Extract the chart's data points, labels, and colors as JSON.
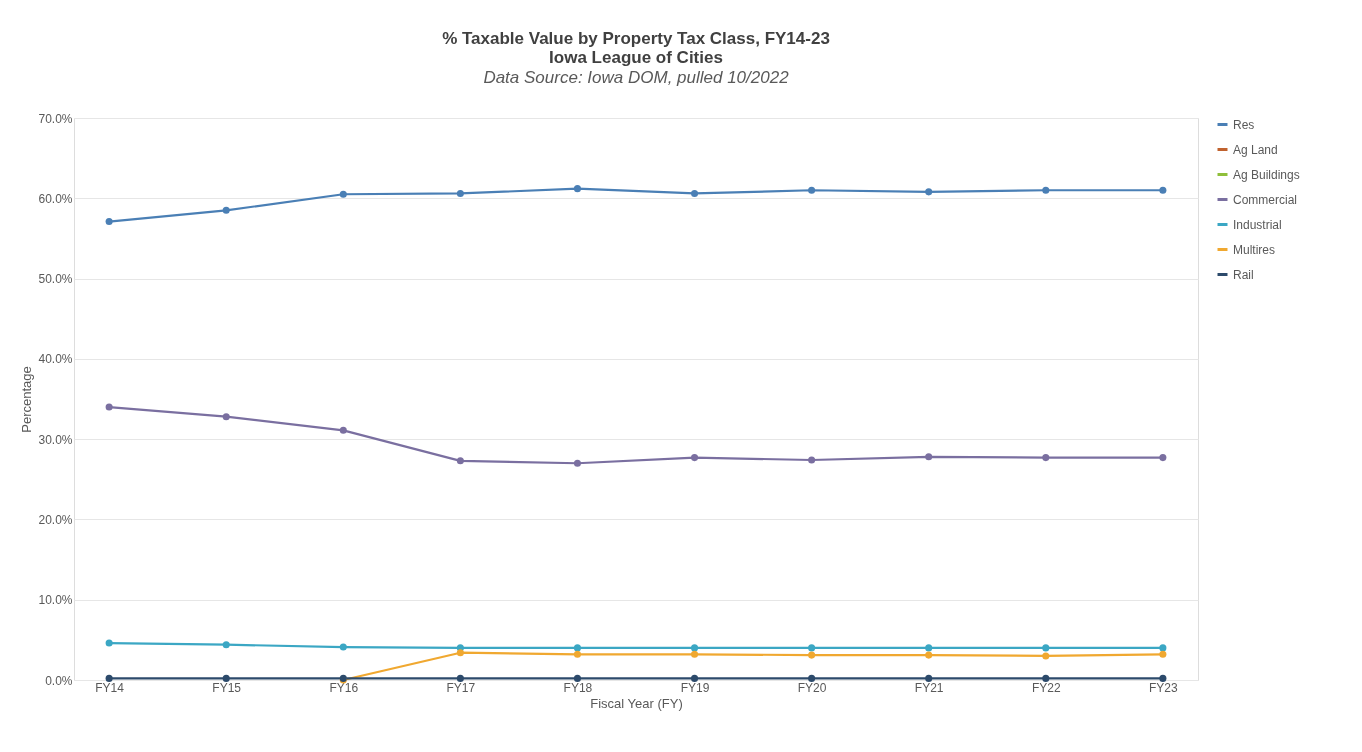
{
  "chart_data": {
    "type": "line",
    "title": "% Taxable Value by Property Tax Class, FY14-23",
    "subtitle": "Iowa League of Cities",
    "annotations": [
      "Data Source: Iowa DOM, pulled 10/2022"
    ],
    "xlabel": "Fiscal Year (FY)",
    "ylabel": "Percentage",
    "categories": [
      "FY14",
      "FY15",
      "FY16",
      "FY17",
      "FY18",
      "FY19",
      "FY20",
      "FY21",
      "FY22",
      "FY23"
    ],
    "series": [
      {
        "name": "Res",
        "color": "#4a7fb5",
        "values": [
          57.1,
          58.5,
          60.5,
          60.6,
          61.2,
          60.6,
          61.0,
          60.8,
          61.0,
          61.0
        ]
      },
      {
        "name": "Ag Land",
        "color": "#c0622e",
        "values": [
          null,
          null,
          null,
          null,
          null,
          null,
          null,
          null,
          null,
          null
        ]
      },
      {
        "name": "Ag Buildings",
        "color": "#8fbf3a",
        "values": [
          null,
          null,
          null,
          null,
          null,
          null,
          null,
          null,
          null,
          null
        ]
      },
      {
        "name": "Commercial",
        "color": "#7a6fa0",
        "values": [
          34.0,
          32.8,
          31.1,
          27.3,
          27.0,
          27.7,
          27.4,
          27.8,
          27.7,
          27.7
        ]
      },
      {
        "name": "Industrial",
        "color": "#3ba7c4",
        "values": [
          4.6,
          4.4,
          4.1,
          4.0,
          4.0,
          4.0,
          4.0,
          4.0,
          4.0,
          4.0
        ]
      },
      {
        "name": "Multires",
        "color": "#f0a830",
        "values": [
          null,
          null,
          0.0,
          3.4,
          3.2,
          3.2,
          3.1,
          3.1,
          3.0,
          3.2
        ]
      },
      {
        "name": "Rail",
        "color": "#2c4a6b",
        "values": [
          0.2,
          0.2,
          0.2,
          0.2,
          0.2,
          0.2,
          0.2,
          0.2,
          0.2,
          0.2
        ]
      }
    ],
    "ylim": [
      0,
      70
    ],
    "yticks": [
      {
        "value": 0,
        "label": "0.0%"
      },
      {
        "value": 10,
        "label": "10.0%"
      },
      {
        "value": 20,
        "label": "20.0%"
      },
      {
        "value": 30,
        "label": "30.0%"
      },
      {
        "value": 40,
        "label": "40.0%"
      },
      {
        "value": 50,
        "label": "50.0%"
      },
      {
        "value": 60,
        "label": "60.0%"
      },
      {
        "value": 70,
        "label": "70.0%"
      }
    ],
    "grid": "y",
    "legend": "right",
    "marker": "circle",
    "line_style": "solid"
  }
}
